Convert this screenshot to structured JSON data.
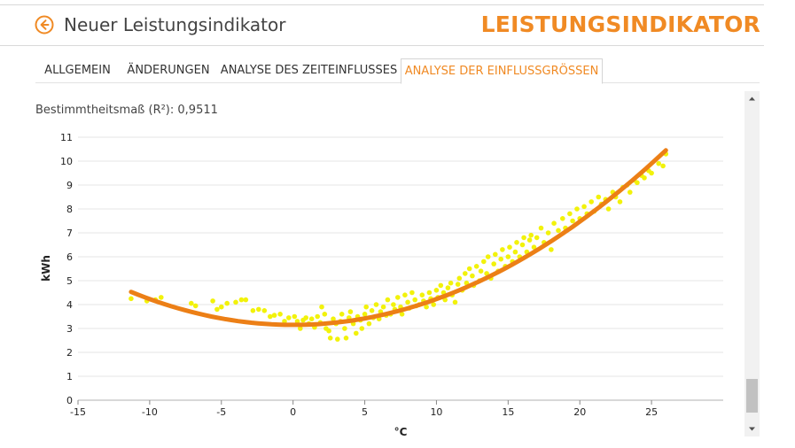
{
  "header": {
    "title": "Neuer Leistungsindikator",
    "brand": "LEISTUNGSINDIKATOR",
    "back_icon": "arrow-left-circle-icon"
  },
  "tabs": [
    {
      "label": "ALLGEMEIN",
      "active": false
    },
    {
      "label": "ÄNDERUNGEN",
      "active": false
    },
    {
      "label": "ANALYSE DES ZEITEINFLUSSES",
      "active": false
    },
    {
      "label": "ANALYSE DER EINFLUSSGRÖSSEN",
      "active": true
    }
  ],
  "r2_label": "Bestimmtheitsmaß (R²): 0,9511",
  "colors": {
    "accent": "#f08a24",
    "points": "#f2f20a",
    "fit": "#ec7f16"
  },
  "chart_data": {
    "type": "scatter",
    "xlabel": "°C",
    "ylabel": "kWh",
    "xlim": [
      -15,
      30
    ],
    "ylim": [
      0,
      11
    ],
    "xticks": [
      -15,
      -10,
      -5,
      0,
      5,
      10,
      15,
      20,
      25
    ],
    "yticks": [
      0,
      1,
      2,
      3,
      4,
      5,
      6,
      7,
      8,
      9,
      10,
      11
    ],
    "grid": "horizontal",
    "fit": {
      "type": "quadratic",
      "coef": [
        3.15,
        0.0,
        0.0108
      ],
      "x_range": [
        -11.3,
        26.0
      ]
    },
    "series": [
      {
        "values": [
          [
            -11.3,
            4.25
          ],
          [
            -10.2,
            4.15
          ],
          [
            -9.6,
            4.2
          ],
          [
            -9.2,
            4.3
          ],
          [
            -7.1,
            4.05
          ],
          [
            -6.8,
            3.95
          ],
          [
            -5.6,
            4.15
          ],
          [
            -5.3,
            3.8
          ],
          [
            -5.0,
            3.9
          ],
          [
            -4.6,
            4.05
          ],
          [
            -4.0,
            4.1
          ],
          [
            -3.6,
            4.2
          ],
          [
            -3.3,
            4.2
          ],
          [
            -2.8,
            3.75
          ],
          [
            -2.4,
            3.8
          ],
          [
            -2.0,
            3.75
          ],
          [
            -1.6,
            3.5
          ],
          [
            -1.3,
            3.55
          ],
          [
            -0.9,
            3.6
          ],
          [
            -0.6,
            3.3
          ],
          [
            -0.3,
            3.45
          ],
          [
            0.1,
            3.5
          ],
          [
            0.3,
            3.3
          ],
          [
            0.5,
            3.0
          ],
          [
            0.7,
            3.35
          ],
          [
            0.9,
            3.45
          ],
          [
            1.1,
            3.2
          ],
          [
            1.3,
            3.4
          ],
          [
            1.5,
            3.05
          ],
          [
            1.7,
            3.5
          ],
          [
            1.9,
            3.25
          ],
          [
            2.0,
            3.9
          ],
          [
            2.2,
            3.6
          ],
          [
            2.3,
            3.0
          ],
          [
            2.5,
            2.9
          ],
          [
            2.6,
            2.6
          ],
          [
            2.8,
            3.4
          ],
          [
            3.0,
            3.2
          ],
          [
            3.1,
            2.55
          ],
          [
            3.3,
            3.3
          ],
          [
            3.4,
            3.6
          ],
          [
            3.6,
            3.0
          ],
          [
            3.7,
            2.6
          ],
          [
            3.9,
            3.45
          ],
          [
            4.0,
            3.7
          ],
          [
            4.2,
            3.2
          ],
          [
            4.4,
            2.8
          ],
          [
            4.5,
            3.5
          ],
          [
            4.7,
            3.35
          ],
          [
            4.8,
            3.0
          ],
          [
            5.0,
            3.6
          ],
          [
            5.1,
            3.9
          ],
          [
            5.3,
            3.2
          ],
          [
            5.5,
            3.75
          ],
          [
            5.6,
            3.45
          ],
          [
            5.8,
            4.0
          ],
          [
            6.0,
            3.4
          ],
          [
            6.1,
            3.7
          ],
          [
            6.3,
            3.9
          ],
          [
            6.5,
            3.55
          ],
          [
            6.6,
            4.2
          ],
          [
            6.8,
            3.6
          ],
          [
            7.0,
            4.0
          ],
          [
            7.1,
            3.8
          ],
          [
            7.3,
            4.3
          ],
          [
            7.5,
            3.9
          ],
          [
            7.6,
            3.6
          ],
          [
            7.8,
            4.4
          ],
          [
            8.0,
            4.1
          ],
          [
            8.1,
            3.85
          ],
          [
            8.3,
            4.5
          ],
          [
            8.5,
            4.2
          ],
          [
            8.6,
            3.95
          ],
          [
            8.8,
            4.0
          ],
          [
            9.0,
            4.4
          ],
          [
            9.1,
            4.15
          ],
          [
            9.3,
            3.9
          ],
          [
            9.5,
            4.5
          ],
          [
            9.6,
            4.25
          ],
          [
            9.8,
            4.0
          ],
          [
            10.0,
            4.6
          ],
          [
            10.1,
            4.3
          ],
          [
            10.3,
            4.8
          ],
          [
            10.5,
            4.5
          ],
          [
            10.6,
            4.2
          ],
          [
            10.8,
            4.7
          ],
          [
            11.0,
            4.9
          ],
          [
            11.1,
            4.4
          ],
          [
            11.3,
            4.1
          ],
          [
            11.5,
            4.85
          ],
          [
            11.6,
            5.1
          ],
          [
            11.8,
            4.6
          ],
          [
            12.0,
            5.3
          ],
          [
            12.1,
            4.9
          ],
          [
            12.3,
            5.5
          ],
          [
            12.5,
            5.2
          ],
          [
            12.6,
            4.8
          ],
          [
            12.8,
            5.6
          ],
          [
            13.0,
            5.0
          ],
          [
            13.1,
            5.4
          ],
          [
            13.3,
            5.8
          ],
          [
            13.5,
            5.3
          ],
          [
            13.6,
            6.0
          ],
          [
            13.8,
            5.1
          ],
          [
            14.0,
            5.7
          ],
          [
            14.1,
            6.1
          ],
          [
            14.3,
            5.4
          ],
          [
            14.5,
            5.9
          ],
          [
            14.6,
            6.3
          ],
          [
            14.8,
            5.6
          ],
          [
            15.0,
            6.0
          ],
          [
            15.1,
            6.4
          ],
          [
            15.3,
            5.8
          ],
          [
            15.5,
            6.2
          ],
          [
            15.6,
            6.6
          ],
          [
            15.8,
            6.0
          ],
          [
            16.0,
            6.5
          ],
          [
            16.1,
            6.8
          ],
          [
            16.3,
            6.2
          ],
          [
            16.5,
            6.7
          ],
          [
            16.6,
            6.9
          ],
          [
            16.8,
            6.4
          ],
          [
            17.0,
            6.8
          ],
          [
            17.3,
            7.2
          ],
          [
            17.5,
            6.6
          ],
          [
            17.8,
            7.0
          ],
          [
            18.0,
            6.3
          ],
          [
            18.2,
            7.4
          ],
          [
            18.5,
            7.1
          ],
          [
            18.8,
            7.6
          ],
          [
            19.0,
            7.2
          ],
          [
            19.3,
            7.8
          ],
          [
            19.5,
            7.5
          ],
          [
            19.8,
            8.0
          ],
          [
            20.0,
            7.6
          ],
          [
            20.3,
            8.1
          ],
          [
            20.5,
            7.8
          ],
          [
            20.8,
            8.3
          ],
          [
            21.0,
            7.9
          ],
          [
            21.3,
            8.5
          ],
          [
            21.5,
            8.2
          ],
          [
            21.8,
            8.4
          ],
          [
            22.0,
            8.0
          ],
          [
            22.3,
            8.7
          ],
          [
            22.5,
            8.5
          ],
          [
            22.8,
            8.3
          ],
          [
            23.0,
            8.9
          ],
          [
            23.3,
            9.0
          ],
          [
            23.5,
            8.7
          ],
          [
            23.8,
            9.2
          ],
          [
            24.0,
            9.1
          ],
          [
            24.3,
            9.4
          ],
          [
            24.5,
            9.3
          ],
          [
            24.8,
            9.6
          ],
          [
            25.0,
            9.5
          ],
          [
            25.5,
            9.9
          ],
          [
            25.8,
            9.8
          ],
          [
            26.0,
            10.3
          ]
        ]
      }
    ]
  }
}
